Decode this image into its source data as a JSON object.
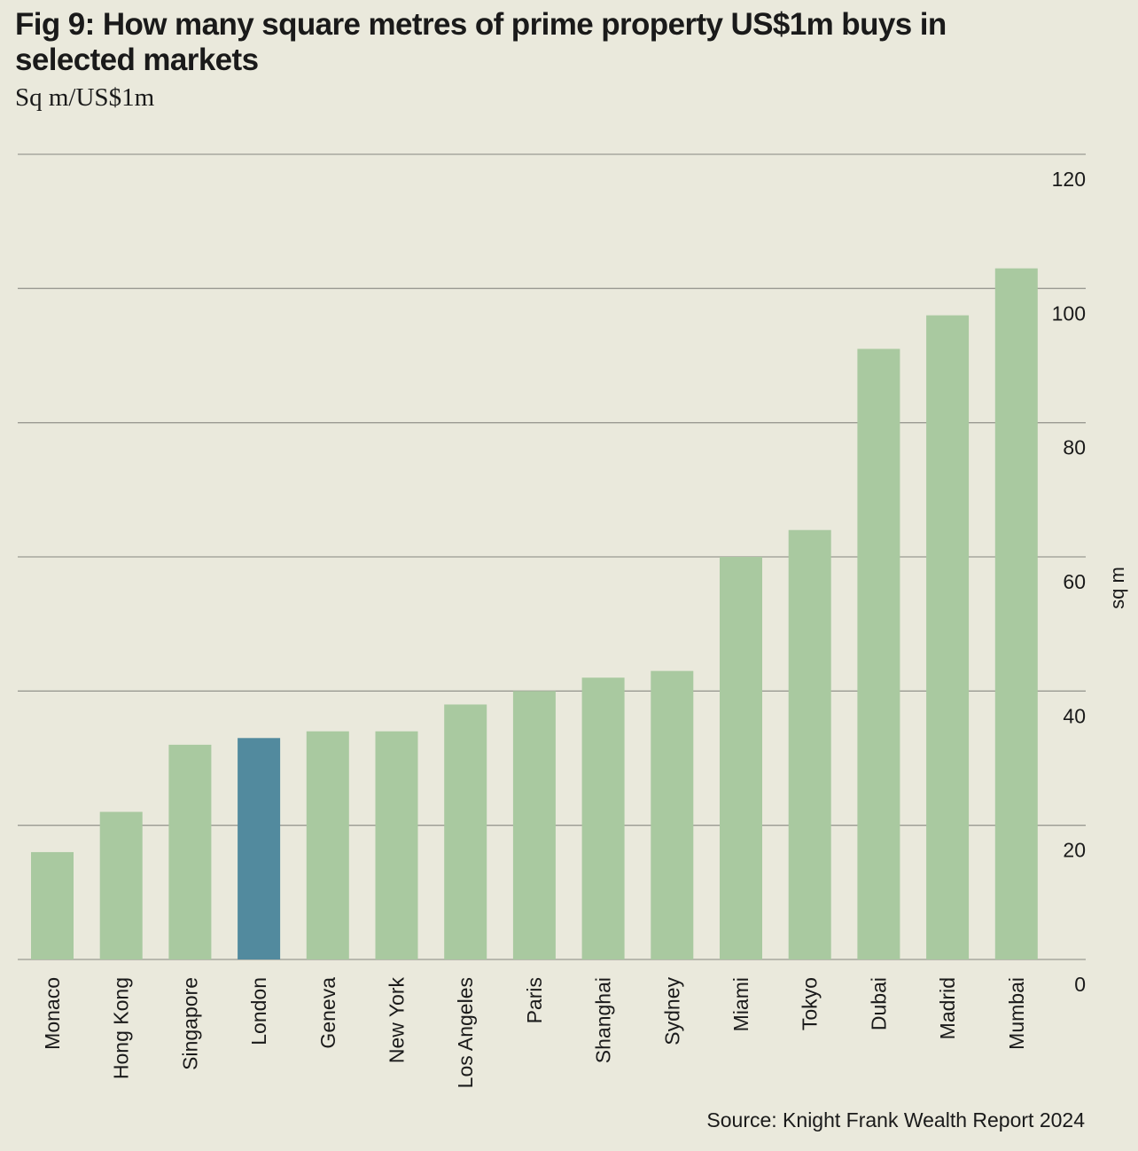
{
  "header": {
    "title": "Fig 9: How many square metres of prime property US$1m buys in selected markets",
    "subtitle": "Sq m/US$1m"
  },
  "footer": {
    "source": "Source: Knight Frank Wealth Report 2024"
  },
  "colors": {
    "bar": "#a9c9a0",
    "highlight": "#528a9e",
    "gridline": "#9a9a92",
    "background": "#eae9dc"
  },
  "chart_data": {
    "type": "bar",
    "title": "Fig 9: How many square metres of prime property US$1m buys in selected markets",
    "subtitle": "Sq m/US$1m",
    "categories": [
      "Monaco",
      "Hong Kong",
      "Singapore",
      "London",
      "Geneva",
      "New York",
      "Los Angeles",
      "Paris",
      "Shanghai",
      "Sydney",
      "Miami",
      "Tokyo",
      "Dubai",
      "Madrid",
      "Mumbai"
    ],
    "values": [
      16,
      22,
      32,
      33,
      34,
      34,
      38,
      40,
      42,
      43,
      60,
      64,
      91,
      96,
      103
    ],
    "highlight_category": "London",
    "ylabel": "sq m",
    "ylim": [
      0,
      120
    ],
    "yticks": [
      0,
      20,
      40,
      60,
      80,
      100,
      120
    ],
    "y_axis_side": "right",
    "grid": true,
    "legend": "none",
    "source": "Source: Knight Frank Wealth Report 2024"
  }
}
